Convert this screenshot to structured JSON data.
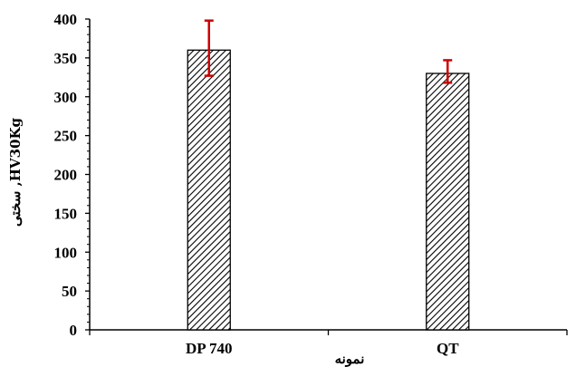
{
  "chart_data": {
    "type": "bar",
    "categories": [
      "DP 740",
      "QT"
    ],
    "values": [
      360,
      330
    ],
    "error_upper": [
      398,
      347
    ],
    "error_lower": [
      327,
      318
    ],
    "ylabel": "سختی ,HV30Kg",
    "xlabel": "نمونه",
    "ylim": [
      0,
      400
    ],
    "yticks": [
      0,
      50,
      100,
      150,
      200,
      250,
      300,
      350,
      400
    ],
    "grid": false,
    "bar_fill": "hatched",
    "colors": {
      "bar_hatch": "#000000",
      "bar_background": "#ffffff",
      "error_bar": "#cc0000",
      "axis": "#000000"
    }
  }
}
